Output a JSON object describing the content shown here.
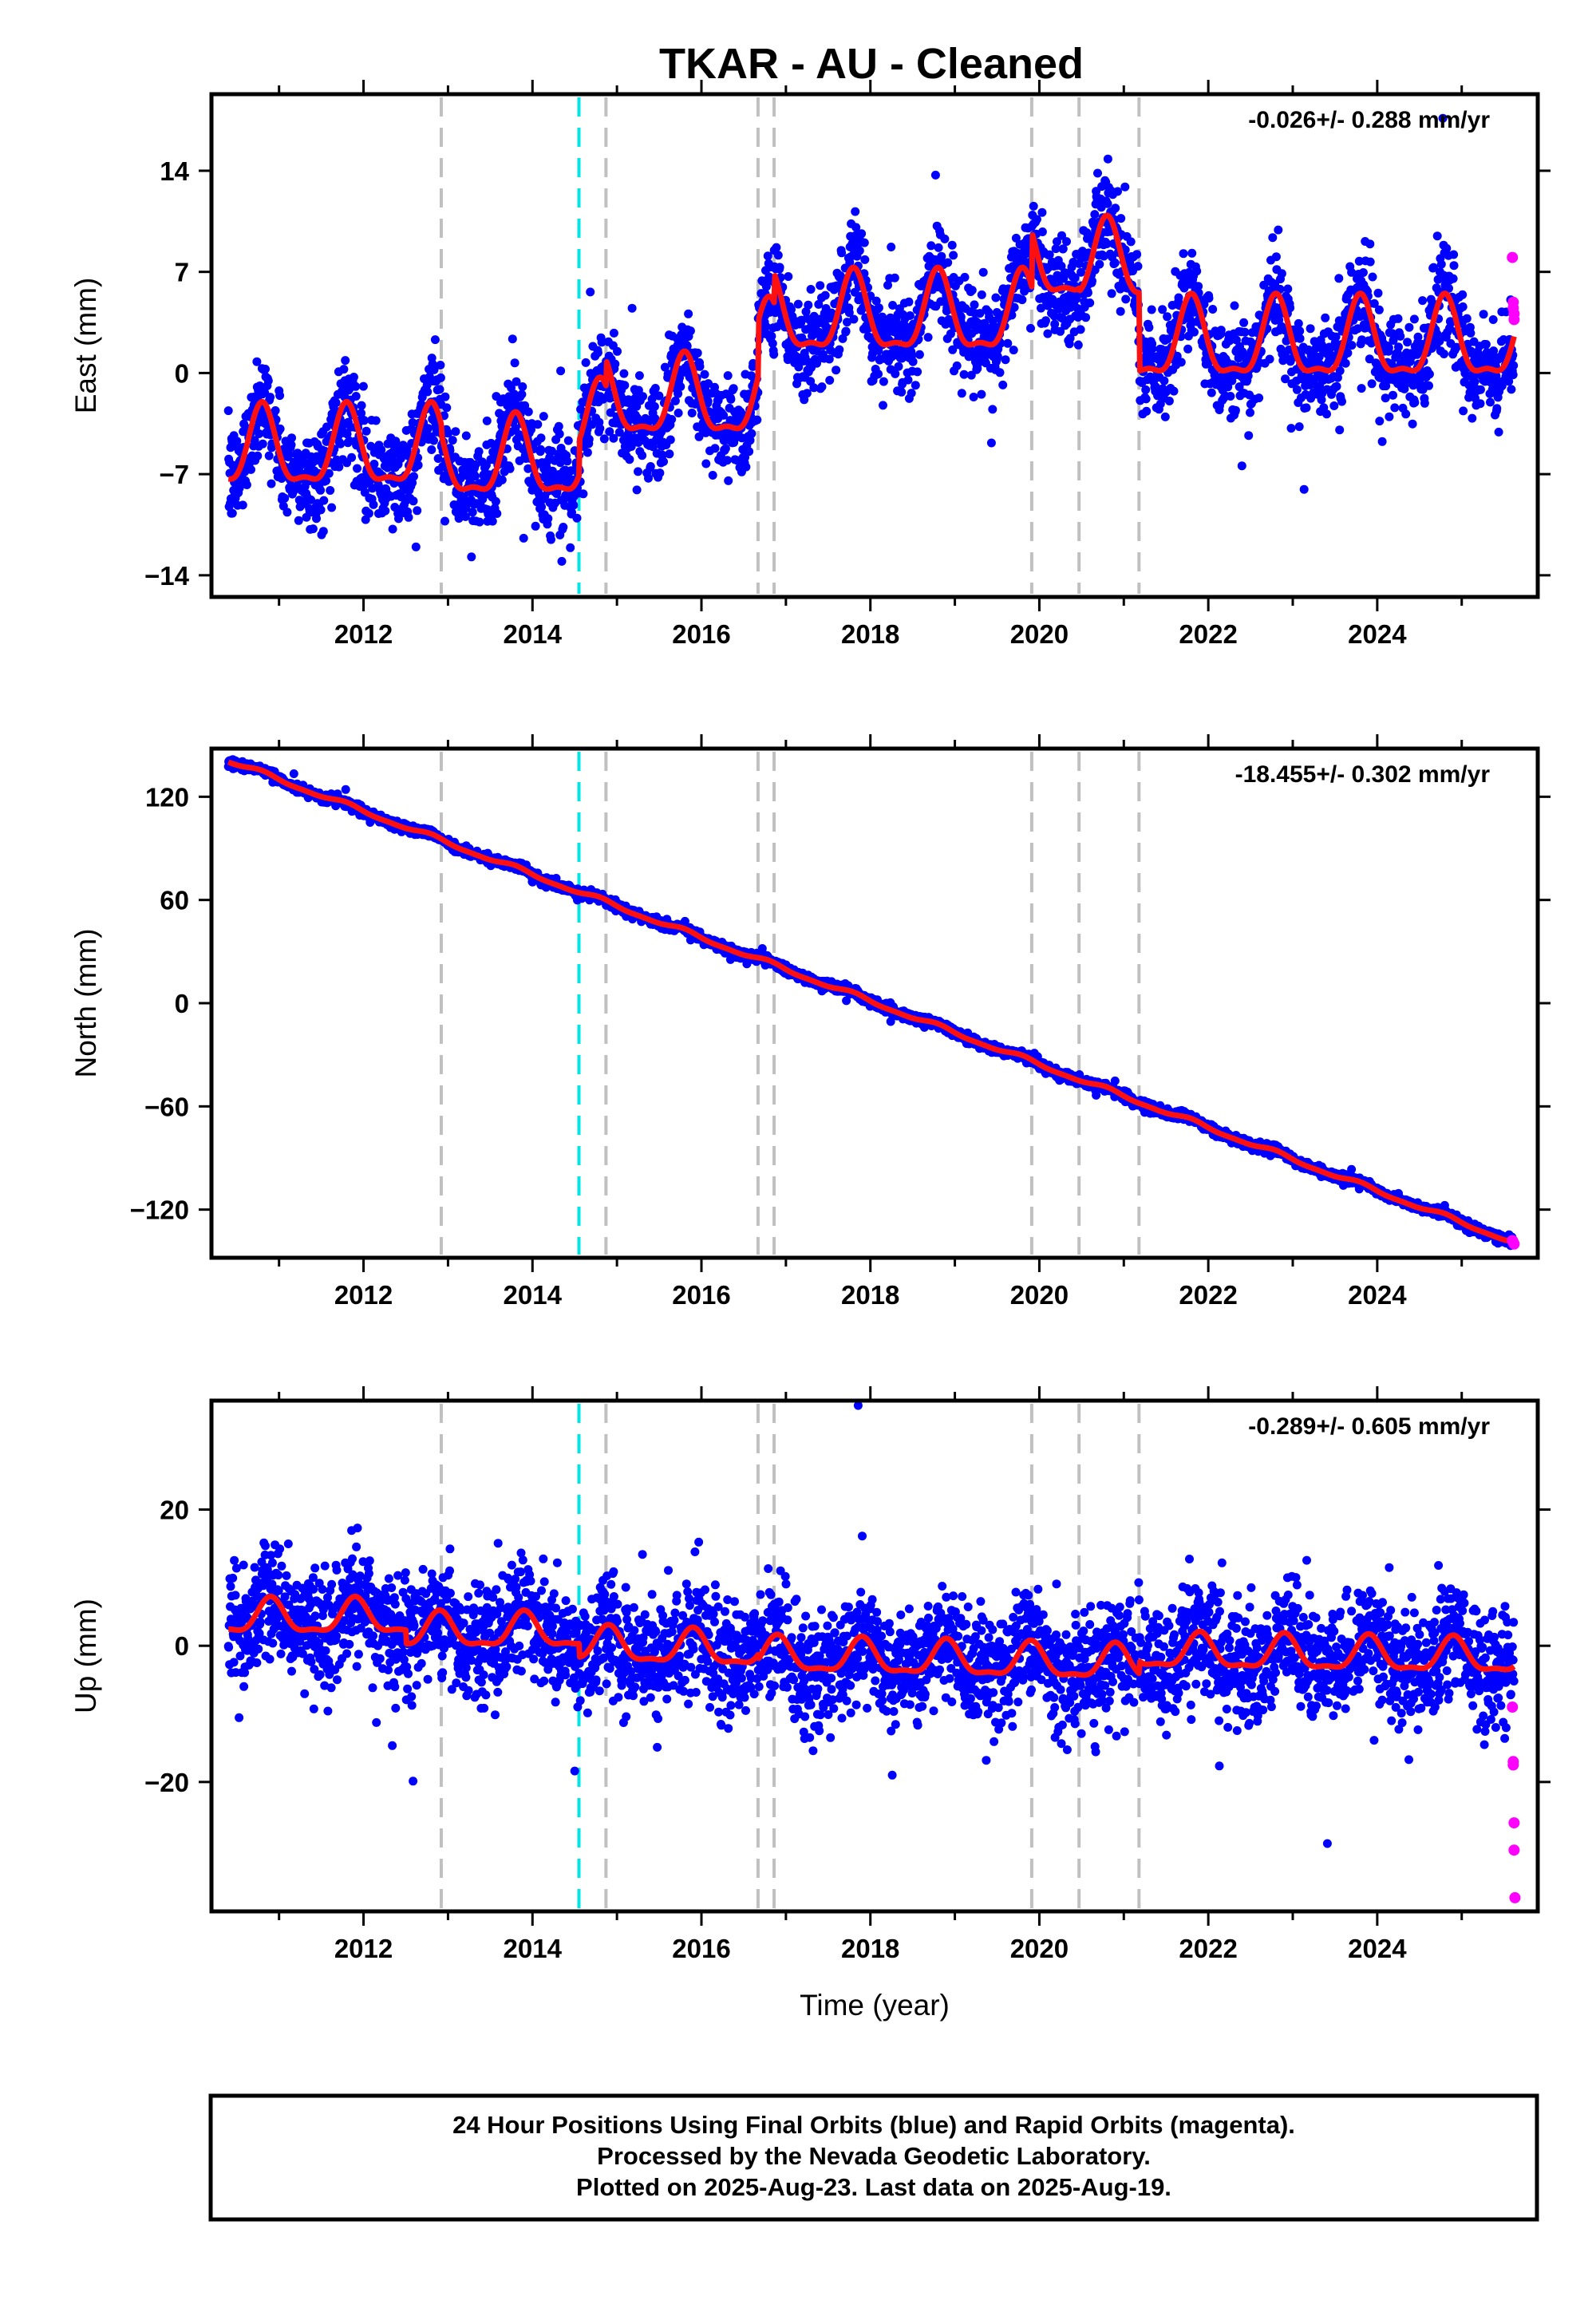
{
  "title": "TKAR  - AU - Cleaned",
  "xlabel": "Time (year)",
  "footer": [
    "24 Hour Positions Using Final Orbits (blue) and Rapid Orbits (magenta).",
    "Processed by the Nevada Geodetic Laboratory.",
    "Plotted on 2025-Aug-23. Last data on 2025-Aug-19."
  ],
  "colors": {
    "final": "#0000ff",
    "rapid": "#ff00ff",
    "model": "#ff1010",
    "step": "#c0c0c0",
    "step_special": "#00e5e5"
  },
  "chart_data": [
    {
      "type": "scatter",
      "ylabel": "East (mm)",
      "rate": "-0.026+/- 0.288 mm/yr",
      "xlim": [
        2010.2,
        2025.9
      ],
      "ylim": [
        -15.5,
        19.3
      ],
      "yticks": [
        -14,
        -7,
        0,
        7,
        14
      ],
      "xticks": [
        2012,
        2014,
        2016,
        2018,
        2020,
        2022,
        2024
      ],
      "breaks": [
        2012.92,
        2014.55,
        2014.87,
        2016.67,
        2016.86,
        2019.91,
        2020.47,
        2021.18
      ],
      "special_breaks": [
        2014.55
      ],
      "seasonal_amplitude": 2.6,
      "seasonal_phase_year": 2010.8,
      "scatter_sd": 1.7,
      "trend_segments": [
        {
          "start": 2010.4,
          "end": 2012.92,
          "y0": -5.5,
          "y1": -5.5
        },
        {
          "start": 2012.92,
          "end": 2014.55,
          "y0": -6.2,
          "y1": -6.2
        },
        {
          "start": 2014.55,
          "end": 2014.87,
          "y0": -3.8,
          "y1": -3.8
        },
        {
          "start": 2014.87,
          "end": 2016.67,
          "y0": -2.0,
          "y1": -2.0
        },
        {
          "start": 2016.67,
          "end": 2016.86,
          "y0": 1.8,
          "y1": 1.8
        },
        {
          "start": 2016.86,
          "end": 2019.91,
          "y0": 3.8,
          "y1": 3.8
        },
        {
          "start": 2019.91,
          "end": 2020.47,
          "y0": 7.6,
          "y1": 7.6
        },
        {
          "start": 2020.47,
          "end": 2021.18,
          "y0": 7.4,
          "y1": 7.4
        },
        {
          "start": 2021.18,
          "end": 2025.62,
          "y0": 2.0,
          "y1": 2.0
        }
      ],
      "rapid_points": [
        {
          "x": 2025.6,
          "y": 8.0
        },
        {
          "x": 2025.61,
          "y": 4.9
        },
        {
          "x": 2025.61,
          "y": 4.5
        },
        {
          "x": 2025.62,
          "y": 4.1
        },
        {
          "x": 2025.62,
          "y": 3.7
        }
      ]
    },
    {
      "type": "scatter",
      "ylabel": "North (mm)",
      "rate": "-18.455+/- 0.302 mm/yr",
      "xlim": [
        2010.2,
        2025.9
      ],
      "ylim": [
        -148,
        148
      ],
      "yticks": [
        -120,
        -60,
        0,
        60,
        120
      ],
      "xticks": [
        2012,
        2014,
        2016,
        2018,
        2020,
        2022,
        2024
      ],
      "breaks": [
        2012.92,
        2014.55,
        2014.87,
        2016.67,
        2016.86,
        2019.91,
        2020.47,
        2021.18
      ],
      "special_breaks": [
        2014.55
      ],
      "seasonal_amplitude": 1.2,
      "seasonal_phase_year": 2010.8,
      "scatter_sd": 1.3,
      "trend_segments": [
        {
          "start": 2010.4,
          "end": 2025.62,
          "y0": 141,
          "y1": -139
        }
      ],
      "rapid_points": [
        {
          "x": 2025.6,
          "y": -138
        },
        {
          "x": 2025.61,
          "y": -139
        },
        {
          "x": 2025.62,
          "y": -140
        }
      ]
    },
    {
      "type": "scatter",
      "ylabel": "Up (mm)",
      "rate": "-0.289+/- 0.605 mm/yr",
      "xlim": [
        2010.2,
        2025.9
      ],
      "ylim": [
        -39,
        36
      ],
      "yticks": [
        -20,
        0,
        20
      ],
      "xticks": [
        2012,
        2014,
        2016,
        2018,
        2020,
        2022,
        2024
      ],
      "breaks": [
        2012.92,
        2014.55,
        2014.87,
        2016.67,
        2016.86,
        2019.91,
        2020.47,
        2021.18
      ],
      "special_breaks": [
        2014.55
      ],
      "seasonal_amplitude": 2.4,
      "seasonal_phase_year": 2010.9,
      "scatter_sd": 4.2,
      "trend_segments": [
        {
          "start": 2010.4,
          "end": 2012.5,
          "y0": 4.0,
          "y1": 4.0
        },
        {
          "start": 2012.5,
          "end": 2014.55,
          "y0": 2.0,
          "y1": 2.0
        },
        {
          "start": 2014.55,
          "end": 2016.67,
          "y0": 0.0,
          "y1": -0.8
        },
        {
          "start": 2016.67,
          "end": 2021.18,
          "y0": -1.5,
          "y1": -2.8
        },
        {
          "start": 2021.18,
          "end": 2025.62,
          "y0": -1.0,
          "y1": -1.8
        }
      ],
      "rapid_points": [
        {
          "x": 2025.6,
          "y": -9
        },
        {
          "x": 2025.61,
          "y": -17
        },
        {
          "x": 2025.61,
          "y": -17.5
        },
        {
          "x": 2025.62,
          "y": -26
        },
        {
          "x": 2025.62,
          "y": -30
        },
        {
          "x": 2025.63,
          "y": -37
        }
      ]
    }
  ]
}
